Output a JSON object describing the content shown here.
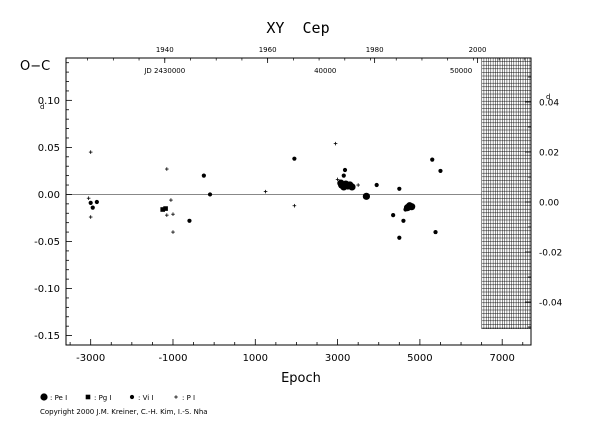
{
  "chart_data": {
    "type": "scatter",
    "title": "XY  Cep",
    "ylabel": "O−C",
    "xlabel": "Epoch",
    "xlim": [
      -3600,
      7700
    ],
    "ylim": [
      -0.16,
      0.145
    ],
    "x_ticks": [
      {
        "value": -3000,
        "label": "-3000"
      },
      {
        "value": -1000,
        "label": "-1000"
      },
      {
        "value": 1000,
        "label": "1000"
      },
      {
        "value": 3000,
        "label": "3000"
      },
      {
        "value": 5000,
        "label": "5000"
      },
      {
        "value": 7000,
        "label": "7000"
      }
    ],
    "y_ticks": [
      {
        "value": 0.1,
        "label": "0.10"
      },
      {
        "value": 0.05,
        "label": "0.05"
      },
      {
        "value": 0.0,
        "label": "0.00"
      },
      {
        "value": -0.05,
        "label": "-0.05"
      },
      {
        "value": -0.1,
        "label": "-0.10"
      },
      {
        "value": -0.15,
        "label": "-0.15"
      }
    ],
    "y_unit_mark": "d",
    "right_ticks": [
      {
        "value": 0.04,
        "label": "0.04"
      },
      {
        "value": 0.02,
        "label": "0.02"
      },
      {
        "value": 0.0,
        "label": "0.00"
      },
      {
        "value": -0.02,
        "label": "-0.02"
      },
      {
        "value": -0.04,
        "label": "-0.04"
      }
    ],
    "right_unit_mark": "d",
    "top_year_ticks": [
      {
        "epoch": -1200,
        "label": "1940"
      },
      {
        "epoch": 1300,
        "label": "1960"
      },
      {
        "epoch": 3900,
        "label": "1980"
      },
      {
        "epoch": 6400,
        "label": "2000"
      }
    ],
    "jd_ticks": [
      {
        "epoch": -1200,
        "label": "JD 2430000"
      },
      {
        "epoch": 2700,
        "label": "40000"
      },
      {
        "epoch": 6000,
        "label": "50000"
      }
    ],
    "hatched_region": {
      "x_from": 6500,
      "x_to": 7700,
      "y_from": -0.143,
      "y_to": 0.145
    },
    "legend": [
      {
        "symbol": "large-dot",
        "label": ": Pe I"
      },
      {
        "symbol": "square",
        "label": ": Pg I"
      },
      {
        "symbol": "small-dot",
        "label": ": Vi I"
      },
      {
        "symbol": "plus",
        "label": ": P I"
      }
    ],
    "series": [
      {
        "symbol": "large-dot",
        "points": [
          [
            3080,
            0.012
          ],
          [
            3100,
            0.01
          ],
          [
            3150,
            0.008
          ],
          [
            3200,
            0.011
          ],
          [
            3250,
            0.009
          ],
          [
            3300,
            0.01
          ],
          [
            3350,
            0.008
          ],
          [
            3700,
            -0.002
          ],
          [
            4700,
            -0.014
          ],
          [
            4750,
            -0.012
          ],
          [
            4800,
            -0.013
          ]
        ]
      },
      {
        "symbol": "square",
        "points": [
          [
            -1250,
            -0.016
          ],
          [
            -1180,
            -0.015
          ]
        ]
      },
      {
        "symbol": "small-dot",
        "points": [
          [
            -3000,
            -0.009
          ],
          [
            -2850,
            -0.008
          ],
          [
            -2950,
            -0.014
          ],
          [
            -600,
            -0.028
          ],
          [
            -250,
            0.02
          ],
          [
            -100,
            0.0
          ],
          [
            1950,
            0.038
          ],
          [
            3150,
            0.02
          ],
          [
            3180,
            0.026
          ],
          [
            3950,
            0.01
          ],
          [
            4350,
            -0.022
          ],
          [
            4500,
            0.006
          ],
          [
            4500,
            -0.046
          ],
          [
            4600,
            -0.028
          ],
          [
            4650,
            -0.016
          ],
          [
            5300,
            0.037
          ],
          [
            5380,
            -0.04
          ],
          [
            5500,
            0.025
          ]
        ]
      },
      {
        "symbol": "plus",
        "points": [
          [
            -3000,
            0.045
          ],
          [
            -3050,
            -0.004
          ],
          [
            -3000,
            -0.024
          ],
          [
            -1150,
            0.027
          ],
          [
            -1150,
            -0.022
          ],
          [
            -1000,
            -0.04
          ],
          [
            -1050,
            -0.006
          ],
          [
            -1000,
            -0.021
          ],
          [
            1250,
            0.003
          ],
          [
            1950,
            -0.012
          ],
          [
            2950,
            0.054
          ],
          [
            3000,
            0.016
          ],
          [
            3500,
            0.01
          ]
        ]
      }
    ]
  },
  "copyright": "Copyright 2000 J.M. Kreiner, C.-H. Kim, I.-S. Nha"
}
